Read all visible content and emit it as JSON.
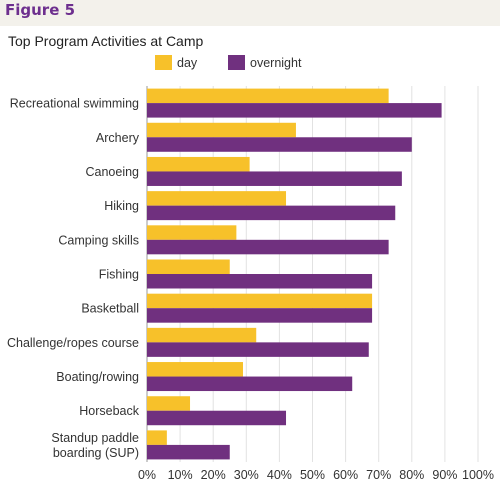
{
  "figure_label": "Figure 5",
  "chart_data": {
    "type": "bar",
    "orientation": "horizontal",
    "title": "Top Program Activities at Camp",
    "categories": [
      "Recreational swimming",
      "Archery",
      "Canoeing",
      "Hiking",
      "Camping skills",
      "Fishing",
      "Basketball",
      "Challenge/ropes course",
      "Boating/rowing",
      "Horseback",
      "Standup paddle boarding (SUP)"
    ],
    "category_lines": [
      [
        "Recreational swimming"
      ],
      [
        "Archery"
      ],
      [
        "Canoeing"
      ],
      [
        "Hiking"
      ],
      [
        "Camping skills"
      ],
      [
        "Fishing"
      ],
      [
        "Basketball"
      ],
      [
        "Challenge/ropes course"
      ],
      [
        "Boating/rowing"
      ],
      [
        "Horseback"
      ],
      [
        "Standup paddle",
        "boarding (SUP)"
      ]
    ],
    "series": [
      {
        "name": "day",
        "color": "#f7c12a",
        "values": [
          73,
          45,
          31,
          42,
          27,
          25,
          68,
          33,
          29,
          13,
          6
        ]
      },
      {
        "name": "overnight",
        "color": "#70307f",
        "values": [
          89,
          80,
          77,
          75,
          73,
          68,
          68,
          67,
          62,
          42,
          25
        ]
      }
    ],
    "xlim": [
      0,
      100
    ],
    "xticks": [
      "0%",
      "10%",
      "20%",
      "30%",
      "40%",
      "50%",
      "60%",
      "70%",
      "80%",
      "90%",
      "100%"
    ],
    "grid": "vertical",
    "legend_position": "top"
  }
}
